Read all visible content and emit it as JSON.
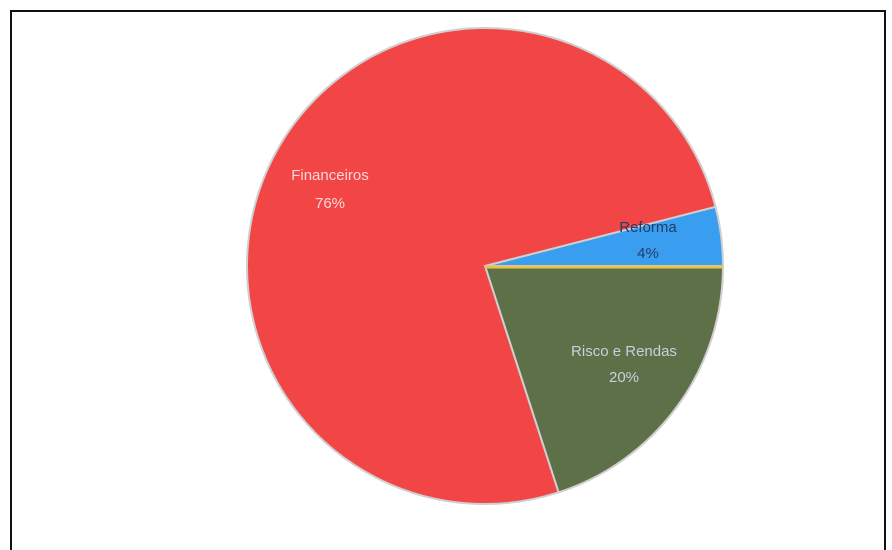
{
  "chart_data": {
    "type": "pie",
    "title": "",
    "slices": [
      {
        "label": "Financeiros",
        "value": 76,
        "value_label": "76%",
        "color": "#f24646",
        "label_color": "#ffd6d6"
      },
      {
        "label": "Reforma",
        "value": 4,
        "value_label": "4%",
        "color": "#3a9ef0",
        "label_color": "#1f3e6b"
      },
      {
        "label": "Risco e Rendas",
        "value": 20,
        "value_label": "20%",
        "color": "#5e7048",
        "label_color": "#c9d0de"
      }
    ],
    "legend": "none",
    "labels_inside": true
  }
}
